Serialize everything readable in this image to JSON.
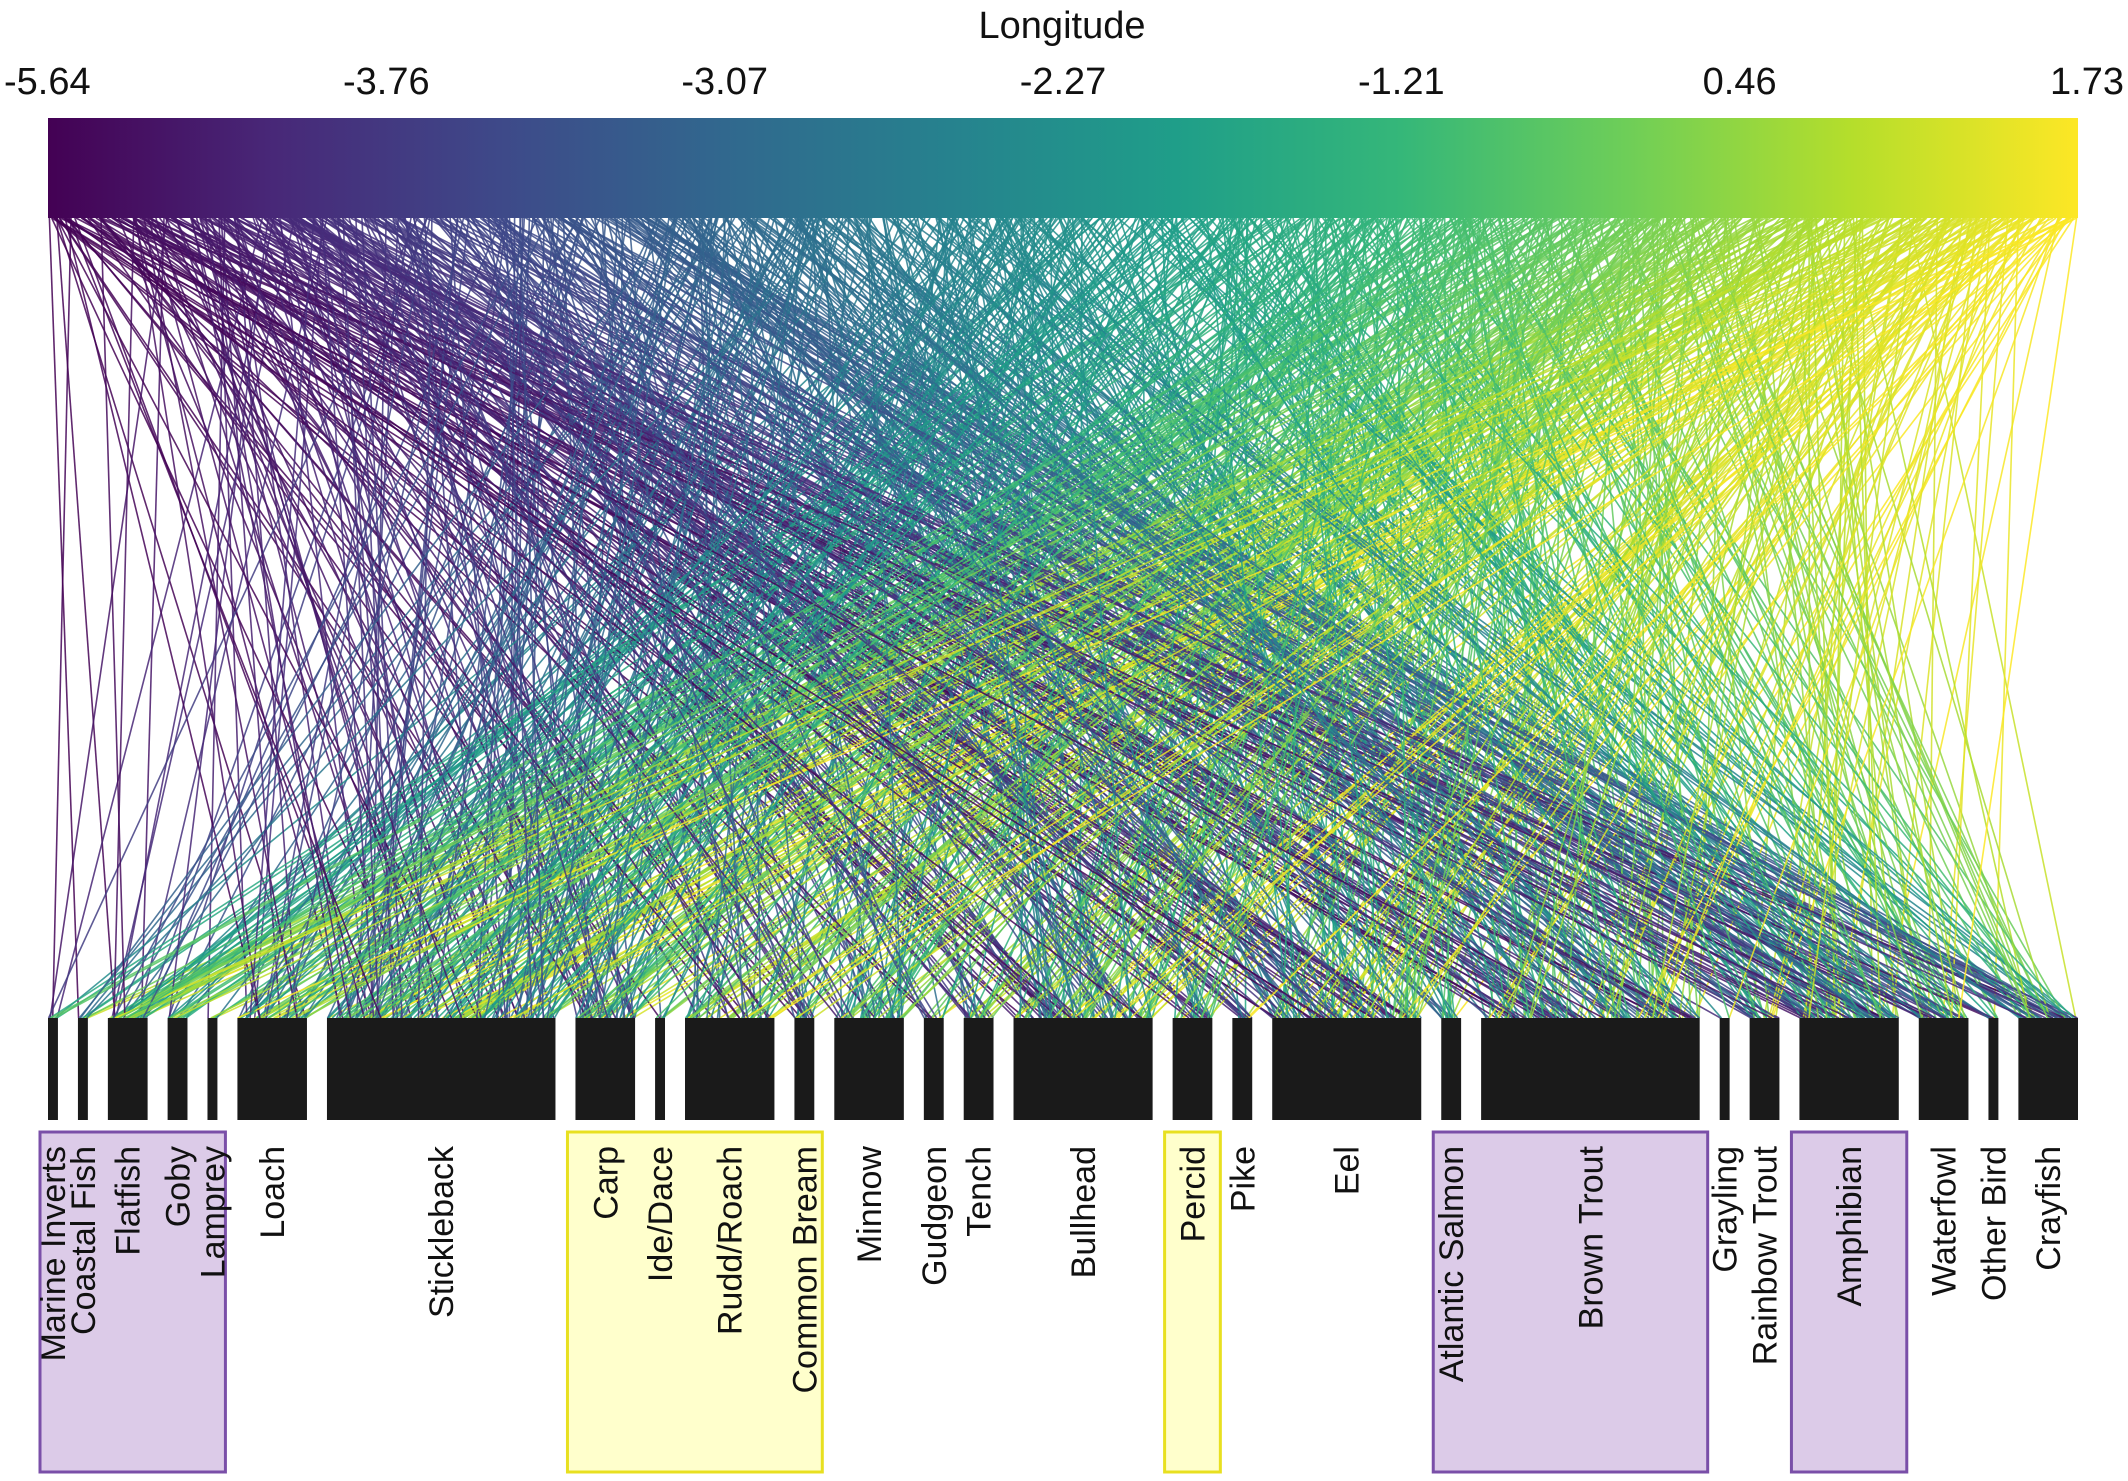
{
  "chart_data": {
    "type": "parallel-sets",
    "title": "",
    "axis_title": "Longitude",
    "ticks": [
      "-5.64",
      "-3.76",
      "-3.07",
      "-2.27",
      "-1.21",
      "0.46",
      "1.73"
    ],
    "colormap": [
      "#440154",
      "#482878",
      "#3e4989",
      "#31688e",
      "#26828e",
      "#1f9e89",
      "#35b779",
      "#6ece58",
      "#b5de2b",
      "#fde725"
    ],
    "highlight_colors": {
      "purple_fill": "#dccbe8",
      "purple_stroke": "#7a4fa8",
      "yellow_fill": "#ffffcc",
      "yellow_stroke": "#e8e020"
    },
    "categories": [
      {
        "label": "Marine Inverts",
        "weight": 1,
        "highlight": "purple"
      },
      {
        "label": "Coastal Fish",
        "weight": 1,
        "highlight": "purple"
      },
      {
        "label": "Flatfish",
        "weight": 4,
        "highlight": "purple"
      },
      {
        "label": "Goby",
        "weight": 2,
        "highlight": "purple"
      },
      {
        "label": "Lamprey",
        "weight": 1,
        "highlight": "purple"
      },
      {
        "label": "Loach",
        "weight": 7,
        "highlight": ""
      },
      {
        "label": "Stickleback",
        "weight": 23,
        "highlight": ""
      },
      {
        "label": "Carp",
        "weight": 6,
        "highlight": "yellow"
      },
      {
        "label": "Ide/Dace",
        "weight": 1,
        "highlight": "yellow"
      },
      {
        "label": "Rudd/Roach",
        "weight": 9,
        "highlight": "yellow"
      },
      {
        "label": "Common Bream",
        "weight": 2,
        "highlight": "yellow"
      },
      {
        "label": "Minnow",
        "weight": 7,
        "highlight": ""
      },
      {
        "label": "Gudgeon",
        "weight": 2,
        "highlight": ""
      },
      {
        "label": "Tench",
        "weight": 3,
        "highlight": ""
      },
      {
        "label": "Bullhead",
        "weight": 14,
        "highlight": ""
      },
      {
        "label": "Percid",
        "weight": 4,
        "highlight": "yellow"
      },
      {
        "label": "Pike",
        "weight": 2,
        "highlight": ""
      },
      {
        "label": "Eel",
        "weight": 15,
        "highlight": ""
      },
      {
        "label": "Atlantic Salmon",
        "weight": 2,
        "highlight": "purple"
      },
      {
        "label": "Brown Trout",
        "weight": 22,
        "highlight": "purple"
      },
      {
        "label": "Grayling",
        "weight": 1,
        "highlight": ""
      },
      {
        "label": "Rainbow Trout",
        "weight": 3,
        "highlight": ""
      },
      {
        "label": "Amphibian",
        "weight": 10,
        "highlight": "purple"
      },
      {
        "label": "Waterfowl",
        "weight": 5,
        "highlight": ""
      },
      {
        "label": "Other Bird",
        "weight": 1,
        "highlight": ""
      },
      {
        "label": "Crayfish",
        "weight": 6,
        "highlight": ""
      }
    ]
  }
}
